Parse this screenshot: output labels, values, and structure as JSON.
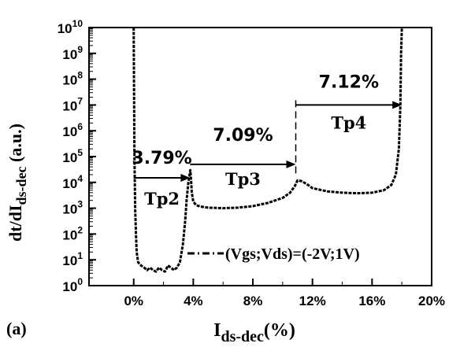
{
  "chart_data": {
    "type": "line",
    "panel_label": "(a)",
    "xlabel_main": "I",
    "xlabel_sub": "ds-dec",
    "xlabel_suffix": "(%)",
    "ylabel_main": "dt/dI",
    "ylabel_sub": "ds-dec",
    "ylabel_suffix": " (a.u.)",
    "xlim": [
      -3,
      20
    ],
    "ylim_exp": [
      0,
      10
    ],
    "y_scale": "log",
    "x_ticks": [
      0,
      4,
      8,
      12,
      16,
      20
    ],
    "x_tick_labels": [
      "0%",
      "4%",
      "8%",
      "12%",
      "16%",
      "20%"
    ],
    "y_tick_exponents": [
      0,
      1,
      2,
      3,
      4,
      5,
      6,
      7,
      8,
      9,
      10
    ],
    "y_tick_base": "10",
    "legend": {
      "label": "(Vgs;Vds)=(-2V;1V)",
      "placement": "bottom-right"
    },
    "series": [
      {
        "name": "(Vgs;Vds)=(-2V;1V)",
        "line_style": "dash-dot",
        "x": [
          0.0,
          0.02,
          0.05,
          0.1,
          0.15,
          0.2,
          0.3,
          0.5,
          0.7,
          0.9,
          1.1,
          1.3,
          1.5,
          1.7,
          1.9,
          2.1,
          2.3,
          2.5,
          2.7,
          2.9,
          3.1,
          3.3,
          3.45,
          3.55,
          3.65,
          3.75,
          3.8,
          3.85,
          3.9,
          4.0,
          4.2,
          4.5,
          5.0,
          6.0,
          7.0,
          8.0,
          9.0,
          10.0,
          10.5,
          10.8,
          11.0,
          11.3,
          11.7,
          12.0,
          13.0,
          14.0,
          15.0,
          16.0,
          16.8,
          17.3,
          17.6,
          17.8,
          17.9,
          17.95,
          18.0
        ],
        "y": [
          10000000000.0,
          100000000.0,
          100000.0,
          1000.0,
          100,
          20,
          8,
          6,
          5,
          4,
          5,
          4,
          3.5,
          5,
          4,
          3.5,
          6,
          5,
          4,
          5,
          8,
          40,
          300,
          2000,
          8000,
          20000,
          30000,
          12000,
          4000,
          1800,
          1300,
          1150,
          1050,
          1000,
          1050,
          1200,
          1600,
          2500,
          4000,
          7000,
          12000,
          11000,
          8000,
          6000,
          4500,
          4000,
          3800,
          4000,
          5000,
          8000,
          20000,
          200000.0,
          10000000.0,
          1000000000.0,
          10000000000.0
        ]
      }
    ],
    "arrows": [
      {
        "label": "3.79%",
        "phase": "Tp2",
        "x_start": 0.0,
        "x_end": 3.79,
        "y": 15000
      },
      {
        "label": "7.09%",
        "phase": "Tp3",
        "x_start": 3.79,
        "x_end": 10.88,
        "y": 50000
      },
      {
        "label": "7.12%",
        "phase": "Tp4",
        "x_start": 10.88,
        "x_end": 18.0,
        "y": 10000000.0
      }
    ]
  }
}
